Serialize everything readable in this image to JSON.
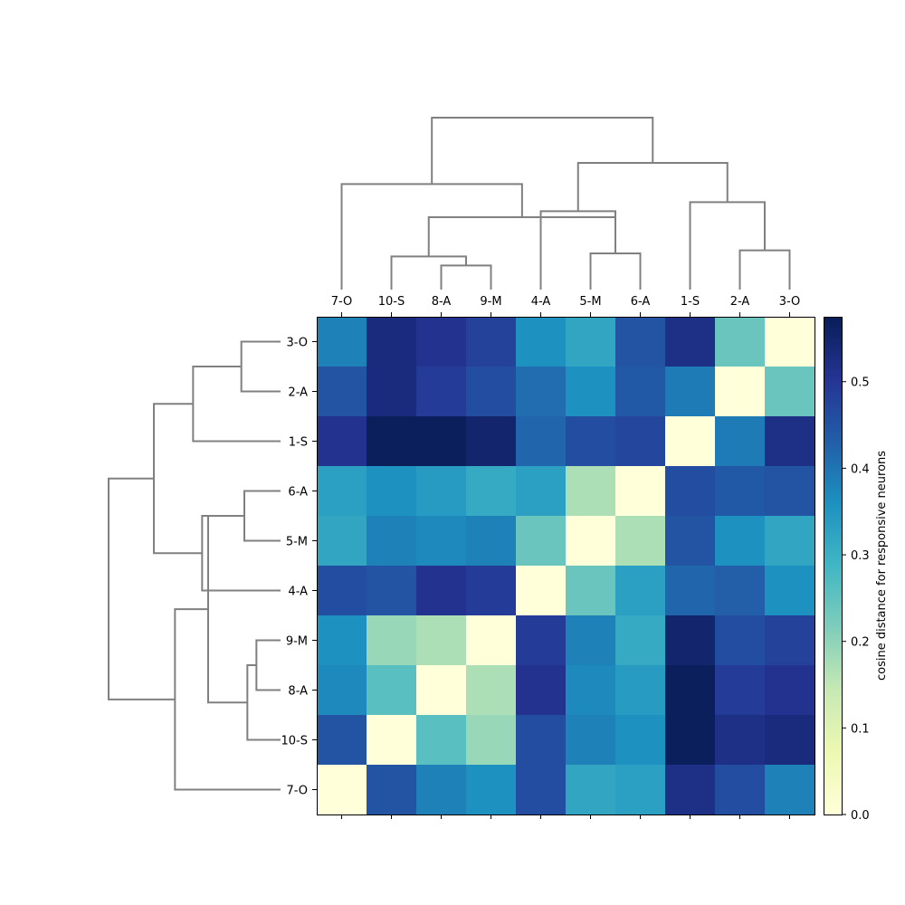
{
  "chart_data": {
    "type": "heatmap",
    "title": "",
    "xlabel": "",
    "ylabel": "",
    "columns": [
      "7-O",
      "10-S",
      "8-A",
      "9-M",
      "4-A",
      "5-M",
      "6-A",
      "1-S",
      "2-A",
      "3-O"
    ],
    "rows": [
      "3-O",
      "2-A",
      "1-S",
      "6-A",
      "5-M",
      "4-A",
      "9-M",
      "8-A",
      "10-S",
      "7-O"
    ],
    "values": [
      [
        0.38,
        0.53,
        0.51,
        0.48,
        0.36,
        0.32,
        0.45,
        0.52,
        0.24,
        0.0
      ],
      [
        0.45,
        0.53,
        0.49,
        0.46,
        0.41,
        0.36,
        0.44,
        0.39,
        0.0,
        0.24
      ],
      [
        0.51,
        0.57,
        0.57,
        0.55,
        0.42,
        0.46,
        0.47,
        0.0,
        0.39,
        0.52
      ],
      [
        0.33,
        0.36,
        0.34,
        0.31,
        0.33,
        0.17,
        0.0,
        0.46,
        0.44,
        0.45
      ],
      [
        0.32,
        0.38,
        0.37,
        0.38,
        0.24,
        0.0,
        0.17,
        0.45,
        0.36,
        0.32
      ],
      [
        0.46,
        0.45,
        0.51,
        0.49,
        0.0,
        0.24,
        0.33,
        0.42,
        0.43,
        0.36
      ],
      [
        0.36,
        0.19,
        0.17,
        0.0,
        0.49,
        0.38,
        0.31,
        0.55,
        0.46,
        0.48
      ],
      [
        0.37,
        0.26,
        0.0,
        0.17,
        0.51,
        0.37,
        0.34,
        0.57,
        0.49,
        0.51
      ],
      [
        0.45,
        0.0,
        0.26,
        0.19,
        0.46,
        0.38,
        0.36,
        0.57,
        0.52,
        0.53
      ],
      [
        0.0,
        0.45,
        0.38,
        0.36,
        0.46,
        0.32,
        0.33,
        0.52,
        0.46,
        0.38
      ]
    ],
    "vmin": 0.0,
    "vmax": 0.575,
    "colormap": [
      "#ffffd9",
      "#edf8b1",
      "#c7e9b4",
      "#7fcdbb",
      "#41b6c4",
      "#1d91c0",
      "#225ea8",
      "#253494",
      "#081d58"
    ],
    "colorbar": {
      "label": "cosine distance for responsive neurons",
      "ticks": [
        0.0,
        0.1,
        0.2,
        0.3,
        0.4,
        0.5
      ],
      "tick_labels": [
        "0.0",
        "0.1",
        "0.2",
        "0.3",
        "0.4",
        "0.5"
      ]
    },
    "dendrogram_color": "#808080",
    "dendrogram": {
      "merges": [
        {
          "a": 2,
          "b": 3,
          "h": 0.08
        },
        {
          "a": 1,
          "b": 10,
          "h": 0.11
        },
        {
          "a": 5,
          "b": 6,
          "h": 0.12
        },
        {
          "a": 8,
          "b": 9,
          "h": 0.13
        },
        {
          "a": 11,
          "b": 12,
          "h": 0.24
        },
        {
          "a": 4,
          "b": 12,
          "h": 0.26
        },
        {
          "a": 7,
          "b": 13,
          "h": 0.29
        },
        {
          "a": 0,
          "b": 14,
          "h": 0.35
        },
        {
          "a": 15,
          "b": 16,
          "h": 0.42
        },
        {
          "a": 17,
          "b": 18,
          "h": 0.57
        }
      ]
    }
  }
}
